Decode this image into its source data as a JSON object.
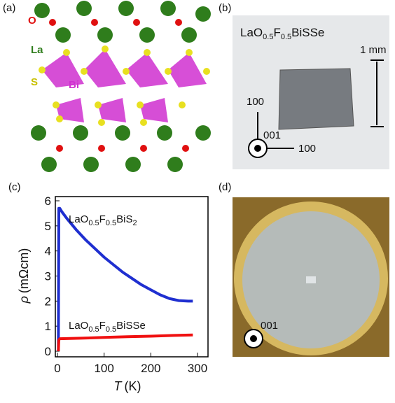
{
  "panels": {
    "a": {
      "label": "(a)",
      "atoms": [
        "O",
        "La",
        "S",
        "Bi"
      ]
    },
    "b": {
      "label": "(b)",
      "formula_parts": [
        "LaO",
        "0.5",
        "F",
        "0.5",
        "BiSSe"
      ],
      "scale": "1 mm",
      "dir_up": "100",
      "dir_out": "001",
      "dir_right": "100"
    },
    "d": {
      "label": "(d)",
      "dir_out": "001"
    }
  },
  "chart_data": {
    "type": "line",
    "panel_label": "(c)",
    "xlabel": {
      "symbol": "T",
      "unit": "(K)"
    },
    "ylabel": {
      "symbol": "ρ",
      "unit": "(mΩcm)"
    },
    "xlim": [
      0,
      300
    ],
    "xticks": [
      0,
      100,
      200,
      300
    ],
    "ylim": [
      0,
      6
    ],
    "yticks": [
      0,
      1,
      2,
      3,
      4,
      5,
      6
    ],
    "series": [
      {
        "color": "#1f2fd0",
        "label_parts": [
          "LaO",
          "0.5",
          "F",
          "0.5",
          "BiS",
          "2"
        ],
        "x": [
          2,
          3,
          5,
          10,
          20,
          40,
          60,
          80,
          100,
          120,
          140,
          160,
          180,
          200,
          220,
          240,
          260,
          280,
          290
        ],
        "values": [
          0,
          5.7,
          5.7,
          5.55,
          5.3,
          4.85,
          4.45,
          4.1,
          3.75,
          3.45,
          3.15,
          2.9,
          2.65,
          2.45,
          2.25,
          2.1,
          2.02,
          2.0,
          2.0
        ]
      },
      {
        "color": "#f01010",
        "label_parts": [
          "LaO",
          "0.5",
          "F",
          "0.5",
          "BiSSe"
        ],
        "x": [
          2,
          3,
          5,
          50,
          100,
          150,
          200,
          250,
          290
        ],
        "values": [
          0,
          0.45,
          0.5,
          0.52,
          0.55,
          0.58,
          0.6,
          0.63,
          0.65
        ]
      }
    ]
  }
}
